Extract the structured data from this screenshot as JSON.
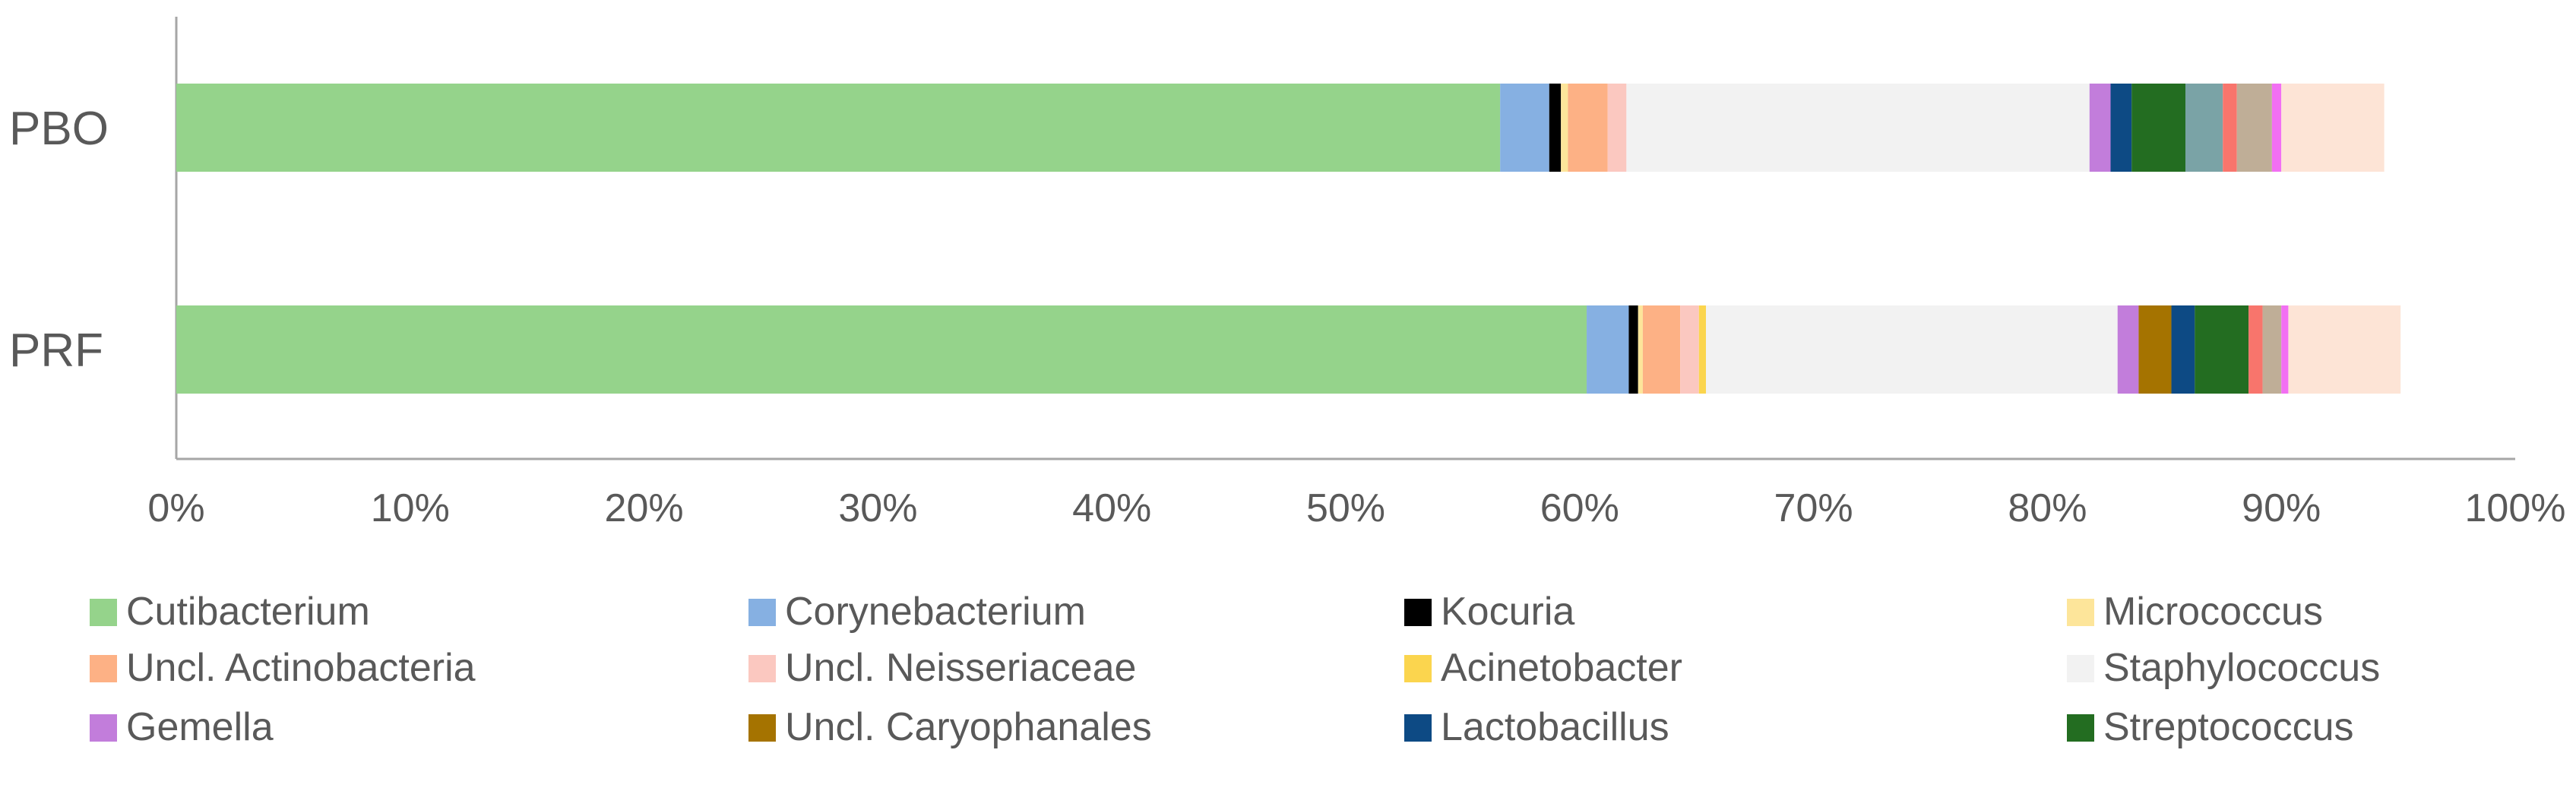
{
  "chart_data": {
    "type": "bar",
    "orientation": "horizontal",
    "stacked": true,
    "categories": [
      "PBO",
      "PRF"
    ],
    "xlim": [
      0,
      100
    ],
    "x_ticks": [
      "0%",
      "10%",
      "20%",
      "30%",
      "40%",
      "50%",
      "60%",
      "70%",
      "80%",
      "90%",
      "100%"
    ],
    "grid": false,
    "legend_position": "bottom",
    "series": [
      {
        "name": "Cutibacterium",
        "color": "#95d38b",
        "values": [
          56.6,
          60.3
        ]
      },
      {
        "name": "Corynebacterium",
        "color": "#86b0e2",
        "values": [
          2.1,
          1.8
        ]
      },
      {
        "name": "Kocuria",
        "color": "#000000",
        "values": [
          0.5,
          0.4
        ]
      },
      {
        "name": "Micrococcus",
        "color": "#fde59a",
        "values": [
          0.3,
          0.2
        ]
      },
      {
        "name": "Uncl. Actinobacteria",
        "color": "#fdb185",
        "values": [
          1.7,
          1.6
        ]
      },
      {
        "name": "Uncl. Neisseriaceae",
        "color": "#fbc8c0",
        "values": [
          0.8,
          0.8
        ]
      },
      {
        "name": "Acinetobacter",
        "color": "#fbd54e",
        "values": [
          0.0,
          0.3
        ]
      },
      {
        "name": "Staphylococcus",
        "color": "#f2f2f2",
        "values": [
          19.8,
          17.6
        ]
      },
      {
        "name": "Gemella",
        "color": "#c27ddb",
        "values": [
          0.9,
          0.9
        ]
      },
      {
        "name": "Uncl. Caryophanales",
        "color": "#a57300",
        "values": [
          0.0,
          1.4
        ]
      },
      {
        "name": "Lactobacillus",
        "color": "#0d4a84",
        "values": [
          0.9,
          1.0
        ]
      },
      {
        "name": "Streptococcus",
        "color": "#236d21",
        "values": [
          2.3,
          2.3
        ]
      },
      {
        "name": "",
        "color": "#7aa3a6",
        "values": [
          1.6,
          0.0
        ]
      },
      {
        "name": "",
        "color": "#f8756c",
        "values": [
          0.6,
          0.6
        ]
      },
      {
        "name": "",
        "color": "#bfae97",
        "values": [
          1.5,
          0.8
        ]
      },
      {
        "name": "",
        "color": "#f26ff3",
        "values": [
          0.4,
          0.3
        ]
      },
      {
        "name": "",
        "color": "#fde4d6",
        "values": [
          4.4,
          4.8
        ]
      }
    ]
  }
}
